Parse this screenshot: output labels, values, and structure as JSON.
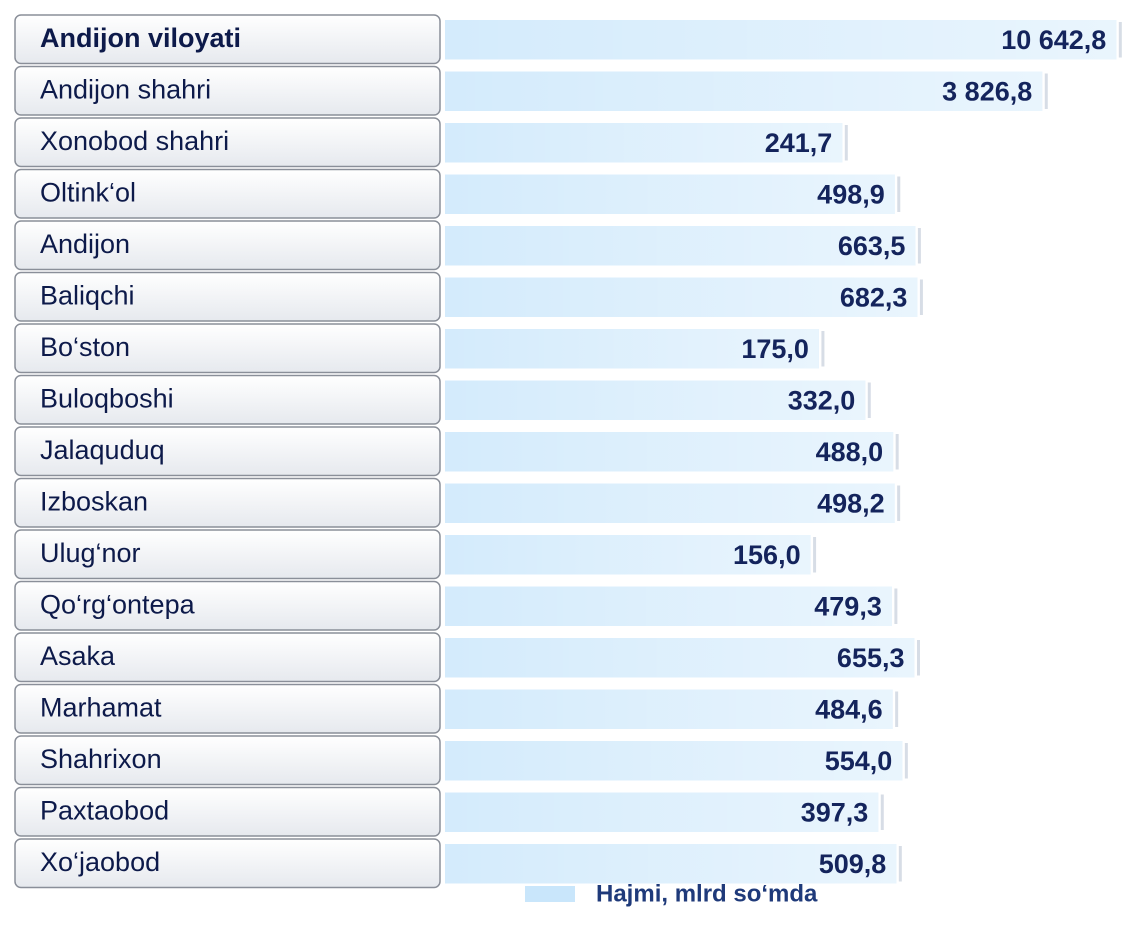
{
  "chart_data": {
    "type": "bar",
    "orientation": "horizontal",
    "log_scale": true,
    "categories": [
      "Andijon viloyati",
      "Andijon  shahri",
      "Xonobod shahri",
      "Oltink‘ol",
      "Andijon",
      "Baliqchi",
      "Bo‘ston",
      "Buloqboshi",
      "Jalaquduq",
      "Izboskan",
      "Ulug‘nor",
      "Qo‘rg‘ontepa",
      "Asaka",
      "Marhamat",
      "Shahrixon",
      "Paxtaobod",
      "Xo‘jaobod"
    ],
    "series": [
      {
        "name": "Hajmi, mlrd so‘mda",
        "color": "#c9e6fb",
        "values": [
          10642.8,
          3826.8,
          241.7,
          498.9,
          663.5,
          682.3,
          175.0,
          332.0,
          488.0,
          498.2,
          156.0,
          479.3,
          655.3,
          484.6,
          554.0,
          397.3,
          509.8
        ],
        "value_labels": [
          "10 642,8",
          "3 826,8",
          "241,7",
          "498,9",
          "663,5",
          "682,3",
          "175,0",
          "332,0",
          "488,0",
          "498,2",
          "156,0",
          "479,3",
          "655,3",
          "484,6",
          "554,0",
          "397,3",
          "509,8"
        ]
      }
    ],
    "xlim": [
      1,
      12000
    ]
  }
}
